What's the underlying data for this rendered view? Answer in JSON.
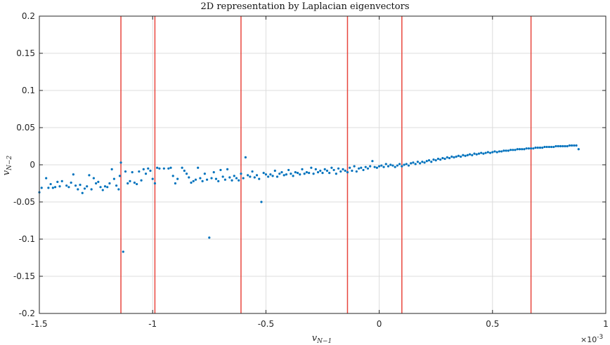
{
  "chart_data": {
    "type": "scatter",
    "title": "2D representation by Laplacian eigenvectors",
    "xlabel": {
      "base": "v",
      "sub": "N−1"
    },
    "ylabel": {
      "base": "v",
      "sub": "N−2"
    },
    "x_exponent": {
      "prefix": "×10",
      "power": "-3"
    },
    "xlim": [
      -1.5,
      1.0
    ],
    "ylim": [
      -0.2,
      0.2
    ],
    "xticks": [
      -1.5,
      -1,
      -0.5,
      0,
      0.5,
      1
    ],
    "xtick_labels": [
      "-1.5",
      "-1",
      "-0.5",
      "0",
      "0.5",
      "1"
    ],
    "yticks": [
      -0.2,
      -0.15,
      -0.1,
      -0.05,
      0,
      0.05,
      0.1,
      0.15,
      0.2
    ],
    "ytick_labels": [
      "-0.2",
      "-0.15",
      "-0.1",
      "-0.05",
      "0",
      "0.05",
      "0.1",
      "0.15",
      "0.2"
    ],
    "grid": true,
    "vertical_lines": [
      -1.14,
      -0.99,
      -0.61,
      -0.14,
      0.1,
      0.67
    ],
    "series": [
      {
        "marker_color": "#0072BD",
        "line_color": "#E8463D",
        "points": [
          [
            -1.5,
            -0.037
          ],
          [
            -1.49,
            -0.031
          ],
          [
            -1.47,
            -0.018
          ],
          [
            -1.46,
            -0.031
          ],
          [
            -1.45,
            -0.026
          ],
          [
            -1.44,
            -0.031
          ],
          [
            -1.43,
            -0.03
          ],
          [
            -1.42,
            -0.023
          ],
          [
            -1.41,
            -0.029
          ],
          [
            -1.4,
            -0.022
          ],
          [
            -1.38,
            -0.028
          ],
          [
            -1.37,
            -0.03
          ],
          [
            -1.36,
            -0.024
          ],
          [
            -1.35,
            -0.013
          ],
          [
            -1.34,
            -0.028
          ],
          [
            -1.33,
            -0.033
          ],
          [
            -1.32,
            -0.027
          ],
          [
            -1.31,
            -0.038
          ],
          [
            -1.3,
            -0.032
          ],
          [
            -1.29,
            -0.029
          ],
          [
            -1.28,
            -0.014
          ],
          [
            -1.27,
            -0.033
          ],
          [
            -1.26,
            -0.018
          ],
          [
            -1.25,
            -0.025
          ],
          [
            -1.24,
            -0.023
          ],
          [
            -1.23,
            -0.03
          ],
          [
            -1.22,
            -0.034
          ],
          [
            -1.21,
            -0.029
          ],
          [
            -1.2,
            -0.03
          ],
          [
            -1.19,
            -0.025
          ],
          [
            -1.18,
            -0.006
          ],
          [
            -1.17,
            -0.019
          ],
          [
            -1.16,
            -0.028
          ],
          [
            -1.15,
            -0.033
          ],
          [
            -1.145,
            -0.015
          ],
          [
            -1.14,
            0.003
          ],
          [
            -1.13,
            -0.117
          ],
          [
            -1.12,
            -0.009
          ],
          [
            -1.11,
            -0.025
          ],
          [
            -1.1,
            -0.022
          ],
          [
            -1.09,
            -0.01
          ],
          [
            -1.08,
            -0.024
          ],
          [
            -1.07,
            -0.026
          ],
          [
            -1.06,
            -0.009
          ],
          [
            -1.05,
            -0.021
          ],
          [
            -1.04,
            -0.006
          ],
          [
            -1.03,
            -0.012
          ],
          [
            -1.02,
            -0.005
          ],
          [
            -1.01,
            -0.008
          ],
          [
            -1.0,
            -0.019
          ],
          [
            -0.99,
            -0.025
          ],
          [
            -0.98,
            -0.004
          ],
          [
            -0.97,
            -0.005
          ],
          [
            -0.95,
            -0.005
          ],
          [
            -0.93,
            -0.005
          ],
          [
            -0.92,
            -0.004
          ],
          [
            -0.91,
            -0.015
          ],
          [
            -0.9,
            -0.025
          ],
          [
            -0.89,
            -0.019
          ],
          [
            -0.87,
            -0.004
          ],
          [
            -0.86,
            -0.008
          ],
          [
            -0.85,
            -0.012
          ],
          [
            -0.84,
            -0.017
          ],
          [
            -0.83,
            -0.024
          ],
          [
            -0.82,
            -0.022
          ],
          [
            -0.81,
            -0.02
          ],
          [
            -0.8,
            -0.004
          ],
          [
            -0.79,
            -0.018
          ],
          [
            -0.78,
            -0.022
          ],
          [
            -0.77,
            -0.012
          ],
          [
            -0.76,
            -0.02
          ],
          [
            -0.75,
            -0.098
          ],
          [
            -0.74,
            -0.018
          ],
          [
            -0.73,
            -0.01
          ],
          [
            -0.72,
            -0.019
          ],
          [
            -0.71,
            -0.022
          ],
          [
            -0.7,
            -0.007
          ],
          [
            -0.69,
            -0.016
          ],
          [
            -0.68,
            -0.02
          ],
          [
            -0.67,
            -0.006
          ],
          [
            -0.66,
            -0.017
          ],
          [
            -0.65,
            -0.021
          ],
          [
            -0.64,
            -0.015
          ],
          [
            -0.63,
            -0.018
          ],
          [
            -0.62,
            -0.021
          ],
          [
            -0.61,
            -0.012
          ],
          [
            -0.6,
            -0.018
          ],
          [
            -0.59,
            0.01
          ],
          [
            -0.58,
            -0.014
          ],
          [
            -0.57,
            -0.016
          ],
          [
            -0.56,
            -0.009
          ],
          [
            -0.55,
            -0.017
          ],
          [
            -0.54,
            -0.014
          ],
          [
            -0.53,
            -0.019
          ],
          [
            -0.52,
            -0.05
          ],
          [
            -0.51,
            -0.011
          ],
          [
            -0.5,
            -0.013
          ],
          [
            -0.49,
            -0.016
          ],
          [
            -0.48,
            -0.013
          ],
          [
            -0.47,
            -0.015
          ],
          [
            -0.46,
            -0.008
          ],
          [
            -0.45,
            -0.016
          ],
          [
            -0.44,
            -0.012
          ],
          [
            -0.43,
            -0.01
          ],
          [
            -0.42,
            -0.014
          ],
          [
            -0.41,
            -0.013
          ],
          [
            -0.4,
            -0.007
          ],
          [
            -0.39,
            -0.012
          ],
          [
            -0.38,
            -0.015
          ],
          [
            -0.37,
            -0.01
          ],
          [
            -0.36,
            -0.011
          ],
          [
            -0.35,
            -0.013
          ],
          [
            -0.34,
            -0.006
          ],
          [
            -0.33,
            -0.012
          ],
          [
            -0.32,
            -0.01
          ],
          [
            -0.31,
            -0.011
          ],
          [
            -0.3,
            -0.004
          ],
          [
            -0.29,
            -0.012
          ],
          [
            -0.28,
            -0.006
          ],
          [
            -0.27,
            -0.01
          ],
          [
            -0.26,
            -0.008
          ],
          [
            -0.25,
            -0.011
          ],
          [
            -0.24,
            -0.006
          ],
          [
            -0.23,
            -0.008
          ],
          [
            -0.22,
            -0.011
          ],
          [
            -0.21,
            -0.004
          ],
          [
            -0.2,
            -0.007
          ],
          [
            -0.19,
            -0.012
          ],
          [
            -0.18,
            -0.005
          ],
          [
            -0.17,
            -0.009
          ],
          [
            -0.16,
            -0.006
          ],
          [
            -0.15,
            -0.008
          ],
          [
            -0.14,
            -0.01
          ],
          [
            -0.13,
            -0.004
          ],
          [
            -0.12,
            -0.008
          ],
          [
            -0.11,
            -0.002
          ],
          [
            -0.1,
            -0.009
          ],
          [
            -0.09,
            -0.005
          ],
          [
            -0.08,
            -0.004
          ],
          [
            -0.07,
            -0.007
          ],
          [
            -0.06,
            -0.003
          ],
          [
            -0.05,
            -0.005
          ],
          [
            -0.04,
            -0.002
          ],
          [
            -0.03,
            0.005
          ],
          [
            -0.02,
            -0.003
          ],
          [
            -0.01,
            -0.004
          ],
          [
            0.0,
            -0.002
          ],
          [
            0.01,
            -0.001
          ],
          [
            0.02,
            -0.003
          ],
          [
            0.03,
            0.001
          ],
          [
            0.04,
            -0.002
          ],
          [
            0.05,
            0.0
          ],
          [
            0.06,
            -0.001
          ],
          [
            0.07,
            -0.003
          ],
          [
            0.08,
            -0.001
          ],
          [
            0.09,
            0.001
          ],
          [
            0.1,
            -0.002
          ],
          [
            0.11,
            0.0
          ],
          [
            0.12,
            0.001
          ],
          [
            0.13,
            -0.001
          ],
          [
            0.14,
            0.002
          ],
          [
            0.15,
            0.003
          ],
          [
            0.16,
            0.001
          ],
          [
            0.17,
            0.004
          ],
          [
            0.18,
            0.002
          ],
          [
            0.19,
            0.004
          ],
          [
            0.2,
            0.003
          ],
          [
            0.21,
            0.005
          ],
          [
            0.22,
            0.006
          ],
          [
            0.23,
            0.004
          ],
          [
            0.24,
            0.007
          ],
          [
            0.25,
            0.006
          ],
          [
            0.26,
            0.008
          ],
          [
            0.27,
            0.007
          ],
          [
            0.28,
            0.009
          ],
          [
            0.29,
            0.008
          ],
          [
            0.3,
            0.01
          ],
          [
            0.31,
            0.009
          ],
          [
            0.32,
            0.011
          ],
          [
            0.33,
            0.01
          ],
          [
            0.34,
            0.011
          ],
          [
            0.35,
            0.012
          ],
          [
            0.36,
            0.011
          ],
          [
            0.37,
            0.013
          ],
          [
            0.38,
            0.012
          ],
          [
            0.39,
            0.013
          ],
          [
            0.4,
            0.014
          ],
          [
            0.41,
            0.013
          ],
          [
            0.42,
            0.015
          ],
          [
            0.43,
            0.014
          ],
          [
            0.44,
            0.015
          ],
          [
            0.45,
            0.016
          ],
          [
            0.46,
            0.015
          ],
          [
            0.47,
            0.016
          ],
          [
            0.48,
            0.017
          ],
          [
            0.49,
            0.016
          ],
          [
            0.5,
            0.017
          ],
          [
            0.51,
            0.018
          ],
          [
            0.52,
            0.017
          ],
          [
            0.53,
            0.018
          ],
          [
            0.54,
            0.018
          ],
          [
            0.55,
            0.019
          ],
          [
            0.56,
            0.019
          ],
          [
            0.57,
            0.019
          ],
          [
            0.58,
            0.02
          ],
          [
            0.59,
            0.02
          ],
          [
            0.6,
            0.02
          ],
          [
            0.61,
            0.021
          ],
          [
            0.62,
            0.021
          ],
          [
            0.63,
            0.021
          ],
          [
            0.64,
            0.021
          ],
          [
            0.65,
            0.022
          ],
          [
            0.66,
            0.022
          ],
          [
            0.67,
            0.022
          ],
          [
            0.68,
            0.022
          ],
          [
            0.69,
            0.023
          ],
          [
            0.7,
            0.023
          ],
          [
            0.71,
            0.023
          ],
          [
            0.72,
            0.023
          ],
          [
            0.73,
            0.024
          ],
          [
            0.74,
            0.024
          ],
          [
            0.75,
            0.024
          ],
          [
            0.76,
            0.024
          ],
          [
            0.77,
            0.024
          ],
          [
            0.78,
            0.025
          ],
          [
            0.79,
            0.025
          ],
          [
            0.8,
            0.025
          ],
          [
            0.81,
            0.025
          ],
          [
            0.82,
            0.025
          ],
          [
            0.83,
            0.025
          ],
          [
            0.84,
            0.026
          ],
          [
            0.85,
            0.026
          ],
          [
            0.86,
            0.026
          ],
          [
            0.87,
            0.026
          ],
          [
            0.88,
            0.021
          ]
        ]
      }
    ]
  }
}
